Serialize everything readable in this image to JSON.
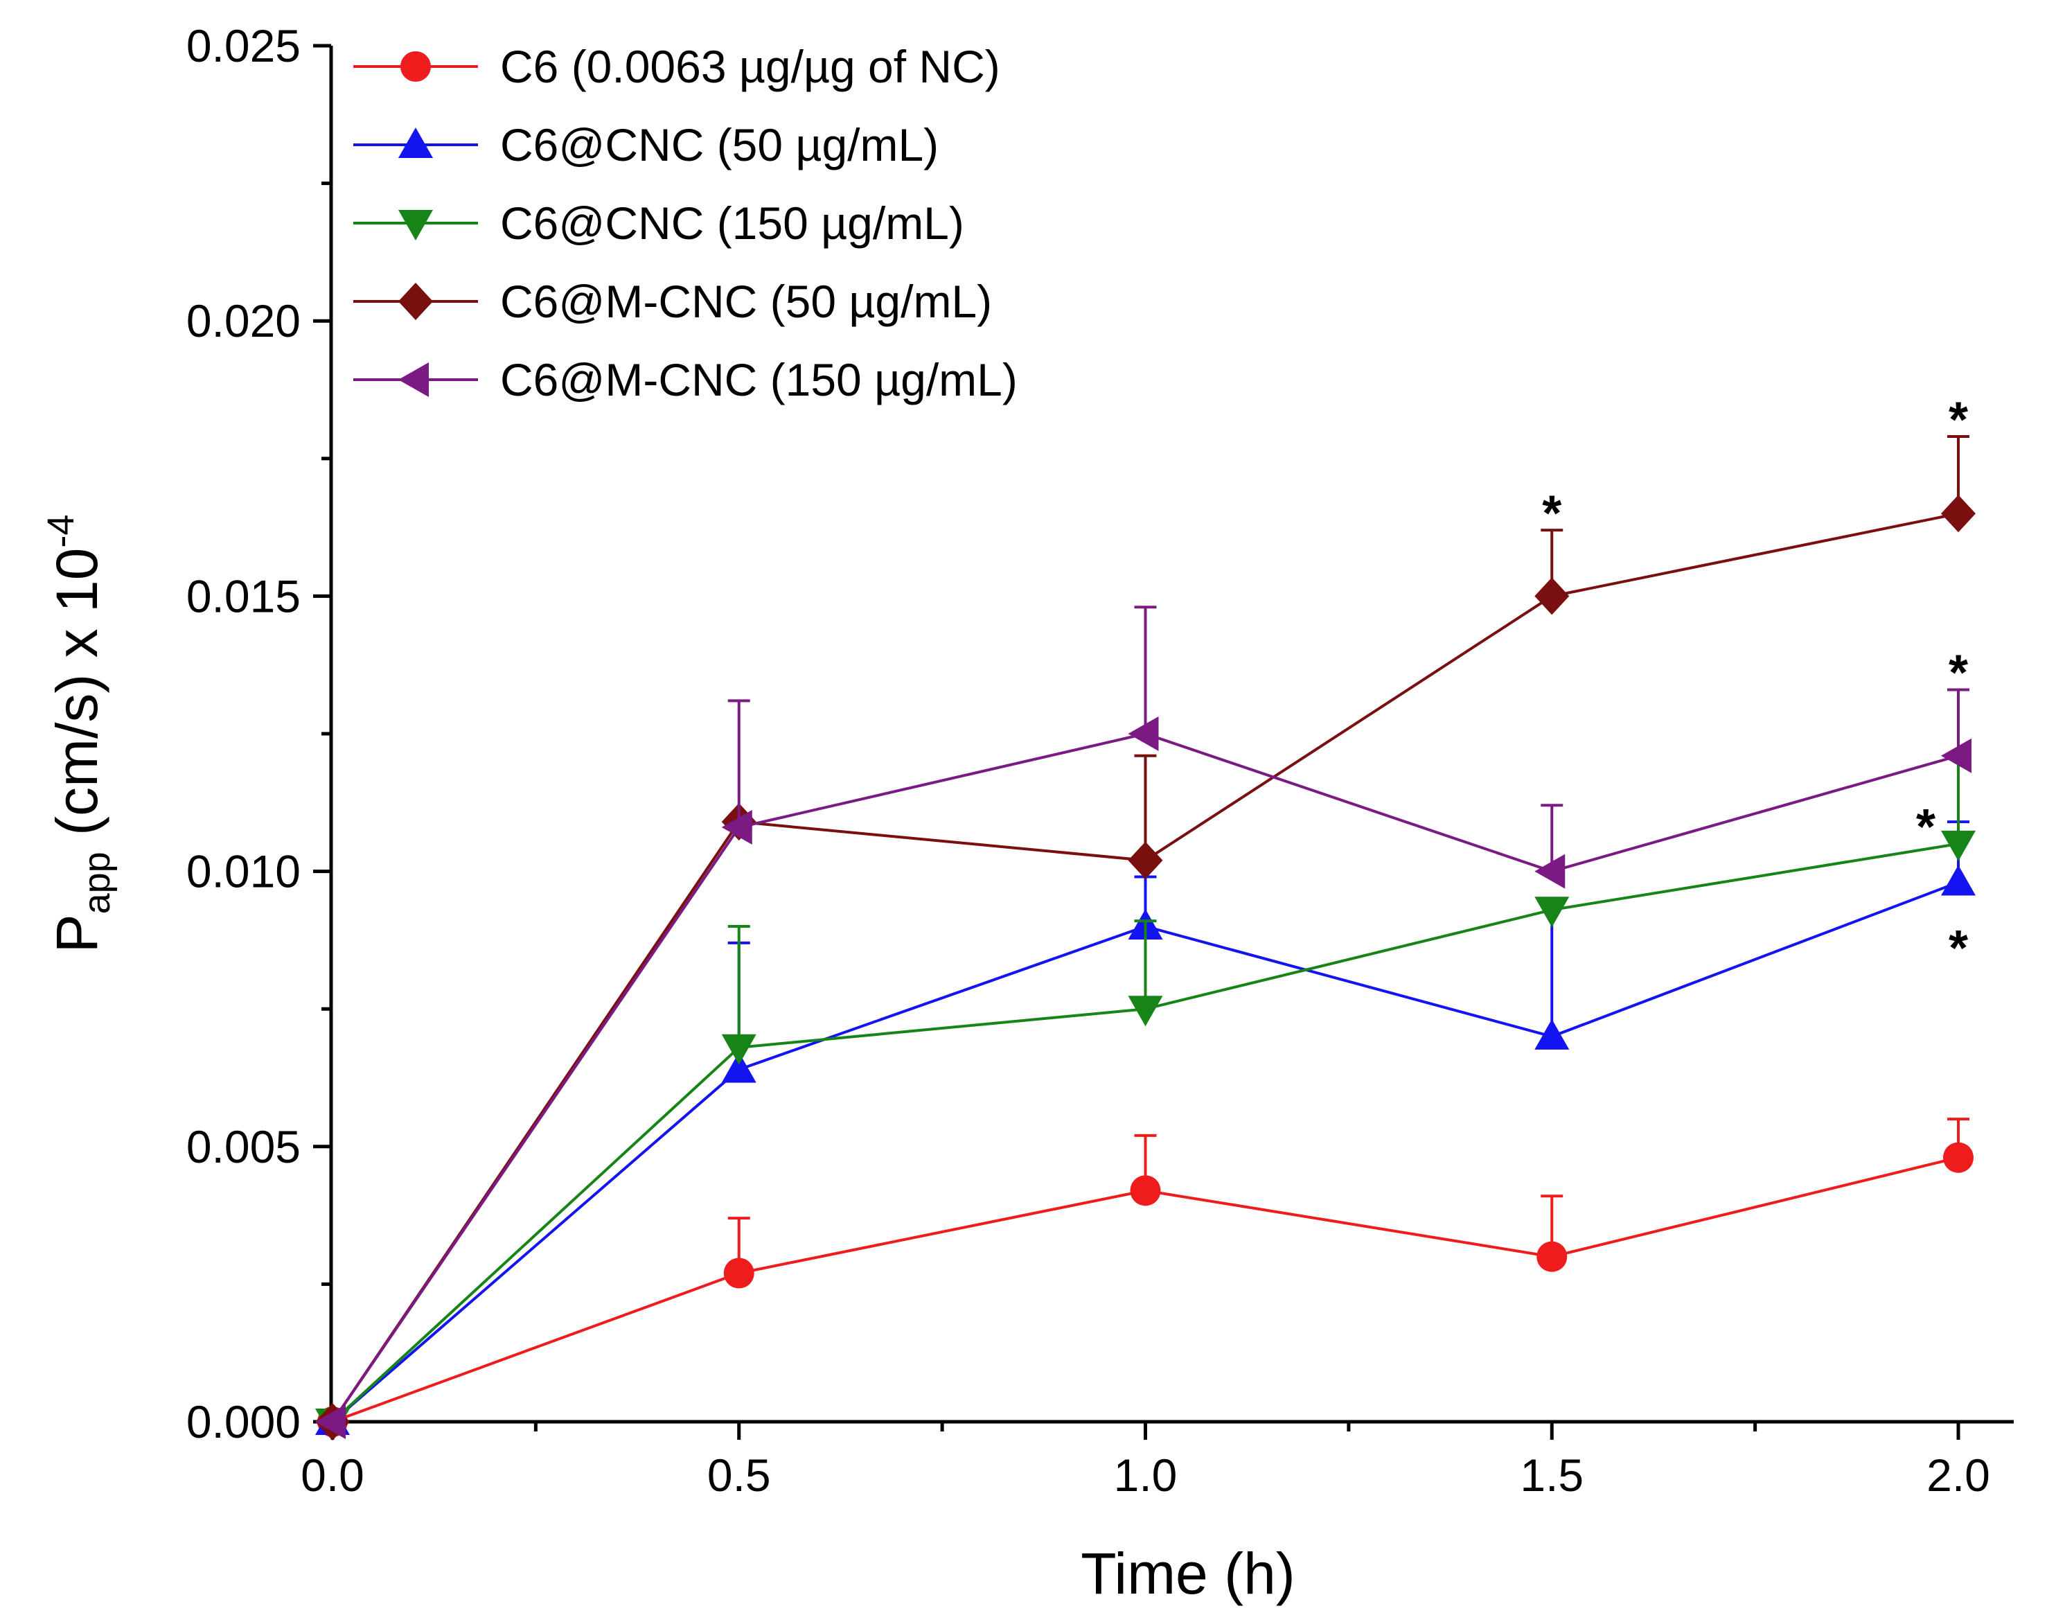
{
  "chart_data": {
    "type": "line",
    "title": "",
    "xlabel": "Time (h)",
    "ylabel": {
      "main": "P",
      "sub": "app",
      "rest": " (cm/s) x 10",
      "sup": "-4"
    },
    "xlim": [
      0.0,
      2.1
    ],
    "ylim": [
      0.0,
      0.025
    ],
    "xticks": [
      "0.0",
      "0.5",
      "1.0",
      "1.5",
      "2.0"
    ],
    "yticks": [
      "0.000",
      "0.005",
      "0.010",
      "0.015",
      "0.020",
      "0.025"
    ],
    "x": [
      0.0,
      0.5,
      1.0,
      1.5,
      2.0
    ],
    "legend_position": "top-left",
    "series": [
      {
        "name": "C6 (0.0063 µg/µg of NC)",
        "color": "#ee1c1c",
        "marker": "circle",
        "values": [
          0.0,
          0.0027,
          0.0042,
          0.003,
          0.0048
        ],
        "errors": [
          0.0,
          0.001,
          0.001,
          0.0011,
          0.0007
        ]
      },
      {
        "name": "C6@CNC (50 µg/mL)",
        "color": "#1414f0",
        "marker": "triangle-up",
        "values": [
          0.0,
          0.0064,
          0.009,
          0.007,
          0.0098
        ],
        "errors": [
          0.0,
          0.0023,
          0.0009,
          0.0025,
          0.0011
        ]
      },
      {
        "name": "C6@CNC (150 µg/mL)",
        "color": "#168416",
        "marker": "triangle-down",
        "values": [
          0.0,
          0.0068,
          0.0075,
          0.0093,
          0.0105
        ],
        "errors": [
          0.0,
          0.0022,
          0.0016,
          0.0002,
          0.0028
        ]
      },
      {
        "name": "C6@M-CNC (50 µg/mL)",
        "color": "#7a0f0f",
        "marker": "diamond",
        "values": [
          0.0,
          0.0109,
          0.0102,
          0.015,
          0.0165
        ],
        "errors": [
          0.0,
          0.0,
          0.0019,
          0.0012,
          0.0014
        ]
      },
      {
        "name": "C6@M-CNC (150 µg/mL)",
        "color": "#7c1a84",
        "marker": "triangle-left",
        "values": [
          0.0,
          0.0108,
          0.0125,
          0.01,
          0.0121
        ],
        "errors": [
          0.0,
          0.0023,
          0.0023,
          0.0012,
          0.0012
        ]
      }
    ],
    "annotations": [
      {
        "text": "*",
        "x": 1.5,
        "y": 0.0167
      },
      {
        "text": "*",
        "x": 2.0,
        "y": 0.0184
      },
      {
        "text": "*",
        "x": 2.0,
        "y": 0.0138
      },
      {
        "text": "*",
        "x": 1.96,
        "y": 0.011
      },
      {
        "text": "*",
        "x": 2.0,
        "y": 0.0088
      }
    ]
  }
}
